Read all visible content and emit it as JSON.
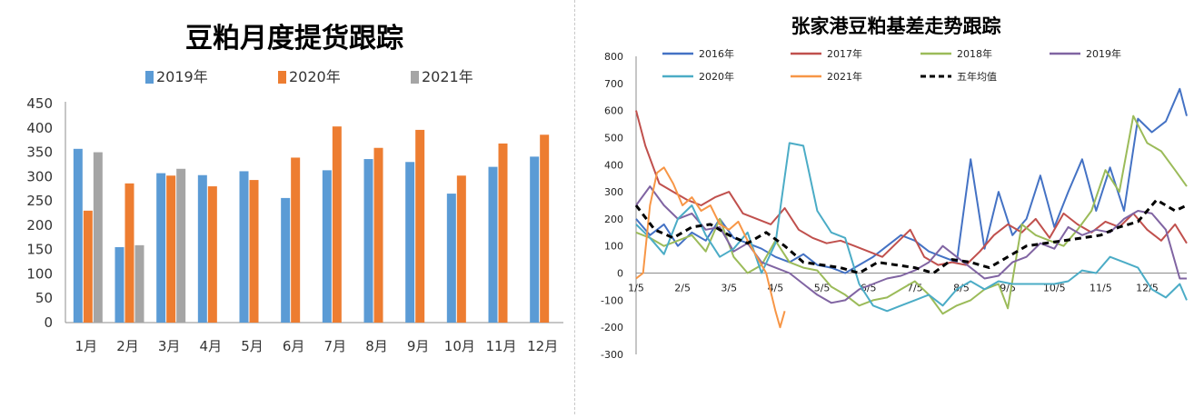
{
  "chart_data": [
    {
      "type": "bar",
      "title": "豆粕月度提货跟踪",
      "categories": [
        "1月",
        "2月",
        "3月",
        "4月",
        "5月",
        "6月",
        "7月",
        "8月",
        "9月",
        "10月",
        "11月",
        "12月"
      ],
      "series": [
        {
          "name": "2019年",
          "color": "#5b9bd5",
          "values": [
            357,
            155,
            307,
            303,
            311,
            256,
            313,
            336,
            330,
            265,
            320,
            341
          ]
        },
        {
          "name": "2020年",
          "color": "#ed7d31",
          "values": [
            230,
            286,
            302,
            280,
            293,
            339,
            403,
            359,
            396,
            302,
            368,
            386
          ]
        },
        {
          "name": "2021年",
          "color": "#a5a5a5",
          "values": [
            350,
            159,
            316,
            null,
            null,
            null,
            null,
            null,
            null,
            null,
            null,
            null
          ]
        }
      ],
      "ylim": [
        0,
        450
      ],
      "yticks": [
        0,
        50,
        100,
        150,
        200,
        250,
        300,
        350,
        400,
        450
      ],
      "grid": false,
      "legend": "top"
    },
    {
      "type": "line",
      "title": "张家港豆粕基差走势跟踪",
      "x_labels": [
        "1/5",
        "2/5",
        "3/5",
        "4/5",
        "5/5",
        "6/5",
        "7/5",
        "8/5",
        "9/5",
        "10/5",
        "11/5",
        "12/5"
      ],
      "ylim": [
        -300,
        800
      ],
      "yticks": [
        -300,
        -200,
        -100,
        0,
        100,
        200,
        300,
        400,
        500,
        600,
        700,
        800
      ],
      "grid": false,
      "legend": "top",
      "series": [
        {
          "name": "2016年",
          "color": "#4472c4",
          "dash": false,
          "x": [
            0,
            0.3,
            0.6,
            0.9,
            1.2,
            1.5,
            1.8,
            2.1,
            2.4,
            2.7,
            3.0,
            3.3,
            3.6,
            3.9,
            4.2,
            4.5,
            4.8,
            5.1,
            5.4,
            5.7,
            6.0,
            6.3,
            6.6,
            6.9,
            7.2,
            7.5,
            7.8,
            8.1,
            8.4,
            8.7,
            9.0,
            9.3,
            9.6,
            9.9,
            10.2,
            10.5,
            10.8,
            11.1,
            11.4,
            11.7,
            11.85
          ],
          "y": [
            200,
            140,
            180,
            100,
            150,
            120,
            200,
            130,
            110,
            90,
            60,
            40,
            70,
            30,
            20,
            0,
            30,
            60,
            100,
            140,
            120,
            80,
            60,
            40,
            420,
            90,
            300,
            140,
            200,
            360,
            170,
            300,
            420,
            230,
            390,
            230,
            570,
            520,
            560,
            680,
            580
          ]
        },
        {
          "name": "2017年",
          "color": "#c0504d",
          "dash": false,
          "x": [
            0,
            0.2,
            0.5,
            0.8,
            1.1,
            1.4,
            1.7,
            2.0,
            2.3,
            2.6,
            2.9,
            3.2,
            3.5,
            3.8,
            4.1,
            4.4,
            4.7,
            5.0,
            5.3,
            5.6,
            5.9,
            6.2,
            6.5,
            6.8,
            7.1,
            7.4,
            7.7,
            8.0,
            8.3,
            8.6,
            8.9,
            9.2,
            9.5,
            9.8,
            10.1,
            10.4,
            10.7,
            11.0,
            11.3,
            11.6,
            11.85
          ],
          "y": [
            600,
            470,
            330,
            300,
            270,
            250,
            280,
            300,
            220,
            200,
            180,
            240,
            160,
            130,
            110,
            120,
            100,
            80,
            60,
            110,
            160,
            60,
            30,
            40,
            30,
            80,
            140,
            180,
            150,
            200,
            130,
            220,
            180,
            150,
            190,
            170,
            220,
            160,
            120,
            180,
            110
          ]
        },
        {
          "name": "2018年",
          "color": "#9bbb59",
          "dash": false,
          "x": [
            0,
            0.3,
            0.6,
            0.9,
            1.2,
            1.5,
            1.8,
            2.1,
            2.4,
            2.7,
            3.0,
            3.3,
            3.6,
            3.9,
            4.2,
            4.5,
            4.8,
            5.1,
            5.4,
            5.7,
            6.0,
            6.3,
            6.6,
            6.9,
            7.2,
            7.5,
            7.8,
            8.0,
            8.3,
            8.6,
            8.9,
            9.2,
            9.5,
            9.8,
            10.1,
            10.4,
            10.7,
            11.0,
            11.3,
            11.6,
            11.85
          ],
          "y": [
            150,
            130,
            100,
            120,
            140,
            80,
            200,
            60,
            0,
            30,
            120,
            40,
            20,
            10,
            -50,
            -80,
            -120,
            -100,
            -90,
            -60,
            -30,
            -80,
            -150,
            -120,
            -100,
            -60,
            -40,
            -130,
            180,
            140,
            120,
            100,
            160,
            230,
            380,
            300,
            580,
            480,
            450,
            380,
            320
          ]
        },
        {
          "name": "2019年",
          "color": "#8064a2",
          "dash": false,
          "x": [
            0,
            0.3,
            0.6,
            0.9,
            1.2,
            1.5,
            1.8,
            2.1,
            2.4,
            2.7,
            3.0,
            3.3,
            3.6,
            3.9,
            4.2,
            4.5,
            4.8,
            5.1,
            5.4,
            5.7,
            6.0,
            6.3,
            6.6,
            6.9,
            7.2,
            7.5,
            7.8,
            8.1,
            8.4,
            8.7,
            9.0,
            9.3,
            9.6,
            9.9,
            10.2,
            10.5,
            10.8,
            11.1,
            11.4,
            11.7,
            11.85
          ],
          "y": [
            250,
            320,
            250,
            200,
            220,
            160,
            170,
            80,
            110,
            40,
            20,
            0,
            -40,
            -80,
            -110,
            -100,
            -60,
            -40,
            -20,
            -10,
            10,
            40,
            100,
            60,
            20,
            -20,
            -10,
            40,
            60,
            110,
            90,
            170,
            140,
            160,
            150,
            200,
            230,
            220,
            160,
            -20,
            -20
          ]
        },
        {
          "name": "2020年",
          "color": "#4bacc6",
          "dash": false,
          "x": [
            0,
            0.3,
            0.6,
            0.9,
            1.2,
            1.5,
            1.8,
            2.1,
            2.4,
            2.7,
            3.0,
            3.3,
            3.6,
            3.9,
            4.2,
            4.5,
            4.8,
            5.1,
            5.4,
            5.7,
            6.0,
            6.3,
            6.6,
            6.9,
            7.2,
            7.5,
            7.8,
            8.1,
            8.4,
            8.7,
            9.0,
            9.3,
            9.6,
            9.9,
            10.2,
            10.5,
            10.8,
            11.1,
            11.4,
            11.7,
            11.85
          ],
          "y": [
            180,
            130,
            70,
            200,
            250,
            140,
            60,
            90,
            150,
            0,
            110,
            480,
            470,
            230,
            150,
            130,
            -40,
            -120,
            -140,
            -120,
            -100,
            -80,
            -120,
            -60,
            -30,
            -60,
            -30,
            -40,
            -40,
            -40,
            -40,
            -30,
            10,
            0,
            60,
            40,
            20,
            -60,
            -90,
            -40,
            -100
          ]
        },
        {
          "name": "2021年",
          "color": "#f79646",
          "dash": false,
          "x": [
            0,
            0.15,
            0.3,
            0.45,
            0.6,
            0.8,
            1.0,
            1.2,
            1.4,
            1.6,
            1.8,
            2.0,
            2.2,
            2.4,
            2.6,
            2.8,
            3.0,
            3.1,
            3.2
          ],
          "y": [
            -20,
            0,
            250,
            370,
            390,
            330,
            250,
            280,
            230,
            250,
            180,
            160,
            190,
            120,
            60,
            0,
            -140,
            -200,
            -140
          ]
        },
        {
          "name": "五年均值",
          "color": "#000000",
          "dash": true,
          "x": [
            0,
            0.4,
            0.8,
            1.2,
            1.6,
            2.0,
            2.4,
            2.8,
            3.2,
            3.6,
            4.0,
            4.4,
            4.8,
            5.2,
            5.6,
            6.0,
            6.4,
            6.8,
            7.2,
            7.6,
            8.0,
            8.4,
            8.8,
            9.2,
            9.6,
            10.0,
            10.4,
            10.8,
            11.2,
            11.6,
            11.85
          ],
          "y": [
            250,
            160,
            130,
            170,
            180,
            140,
            110,
            150,
            100,
            40,
            30,
            20,
            0,
            40,
            30,
            20,
            0,
            50,
            40,
            20,
            60,
            100,
            110,
            120,
            130,
            140,
            170,
            190,
            270,
            230,
            250
          ]
        }
      ]
    }
  ]
}
